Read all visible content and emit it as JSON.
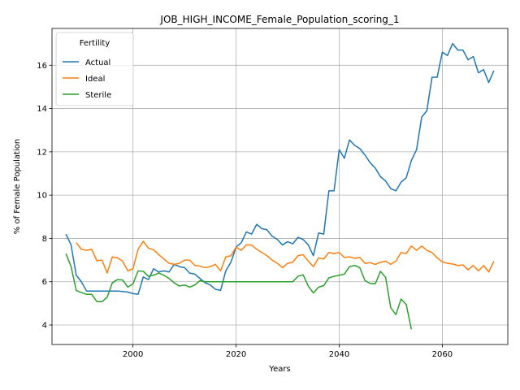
{
  "chart_data": {
    "type": "line",
    "title": "JOB_HIGH_INCOME_Female_Population_scoring_1",
    "xlabel": "Years",
    "ylabel": "% of Female Population",
    "xlim": [
      1984.3,
      2072.7
    ],
    "ylim": [
      3.1,
      17.7
    ],
    "x_ticks": [
      2000,
      2020,
      2040,
      2060
    ],
    "y_ticks": [
      4,
      6,
      8,
      10,
      12,
      14,
      16
    ],
    "grid": true,
    "legend": {
      "title": "Fertility",
      "placement": "top-left"
    },
    "series": [
      {
        "name": "Actual",
        "color": "#1f77b4",
        "points": [
          [
            1987,
            8.2
          ],
          [
            1988,
            7.7
          ],
          [
            1989,
            6.3
          ],
          [
            1990,
            6.0
          ],
          [
            1991,
            5.57
          ],
          [
            1992,
            5.57
          ],
          [
            1993,
            5.57
          ],
          [
            1994,
            5.57
          ],
          [
            1995,
            5.57
          ],
          [
            1996,
            5.57
          ],
          [
            1997,
            5.57
          ],
          [
            1998,
            5.55
          ],
          [
            1999,
            5.52
          ],
          [
            2000,
            5.45
          ],
          [
            2001,
            5.42
          ],
          [
            2002,
            6.22
          ],
          [
            2003,
            6.1
          ],
          [
            2004,
            6.6
          ],
          [
            2005,
            6.45
          ],
          [
            2006,
            6.5
          ],
          [
            2007,
            6.45
          ],
          [
            2008,
            6.8
          ],
          [
            2009,
            6.7
          ],
          [
            2010,
            6.65
          ],
          [
            2011,
            6.4
          ],
          [
            2012,
            6.35
          ],
          [
            2013,
            6.15
          ],
          [
            2014,
            5.95
          ],
          [
            2015,
            5.85
          ],
          [
            2016,
            5.65
          ],
          [
            2017,
            5.6
          ],
          [
            2018,
            6.5
          ],
          [
            2019,
            6.9
          ],
          [
            2020,
            7.6
          ],
          [
            2021,
            7.8
          ],
          [
            2022,
            8.3
          ],
          [
            2023,
            8.2
          ],
          [
            2024,
            8.65
          ],
          [
            2025,
            8.45
          ],
          [
            2026,
            8.4
          ],
          [
            2027,
            8.1
          ],
          [
            2028,
            7.95
          ],
          [
            2029,
            7.7
          ],
          [
            2030,
            7.85
          ],
          [
            2031,
            7.75
          ],
          [
            2032,
            8.05
          ],
          [
            2033,
            7.95
          ],
          [
            2034,
            7.7
          ],
          [
            2035,
            7.2
          ],
          [
            2036,
            8.25
          ],
          [
            2037,
            8.2
          ],
          [
            2038,
            10.2
          ],
          [
            2039,
            10.2
          ],
          [
            2040,
            12.1
          ],
          [
            2041,
            11.7
          ],
          [
            2042,
            12.55
          ],
          [
            2043,
            12.3
          ],
          [
            2044,
            12.15
          ],
          [
            2045,
            11.85
          ],
          [
            2046,
            11.5
          ],
          [
            2047,
            11.25
          ],
          [
            2048,
            10.85
          ],
          [
            2049,
            10.65
          ],
          [
            2050,
            10.3
          ],
          [
            2051,
            10.2
          ],
          [
            2052,
            10.6
          ],
          [
            2053,
            10.8
          ],
          [
            2054,
            11.6
          ],
          [
            2055,
            12.1
          ],
          [
            2056,
            13.6
          ],
          [
            2057,
            13.9
          ],
          [
            2058,
            15.45
          ],
          [
            2059,
            15.45
          ],
          [
            2060,
            16.6
          ],
          [
            2061,
            16.45
          ],
          [
            2062,
            17.0
          ],
          [
            2063,
            16.7
          ],
          [
            2064,
            16.7
          ],
          [
            2065,
            16.25
          ],
          [
            2066,
            16.4
          ],
          [
            2067,
            15.65
          ],
          [
            2068,
            15.8
          ],
          [
            2069,
            15.2
          ],
          [
            2070,
            15.75
          ]
        ]
      },
      {
        "name": "Ideal",
        "color": "#ff7f0e",
        "points": [
          [
            1989,
            7.8
          ],
          [
            1990,
            7.5
          ],
          [
            1991,
            7.45
          ],
          [
            1992,
            7.5
          ],
          [
            1993,
            6.97
          ],
          [
            1994,
            7.0
          ],
          [
            1995,
            6.4
          ],
          [
            1996,
            7.15
          ],
          [
            1997,
            7.1
          ],
          [
            1998,
            6.95
          ],
          [
            1999,
            6.5
          ],
          [
            2000,
            6.6
          ],
          [
            2001,
            7.5
          ],
          [
            2002,
            7.87
          ],
          [
            2003,
            7.55
          ],
          [
            2004,
            7.48
          ],
          [
            2005,
            7.25
          ],
          [
            2006,
            7.05
          ],
          [
            2007,
            6.85
          ],
          [
            2008,
            6.8
          ],
          [
            2009,
            6.85
          ],
          [
            2010,
            7.0
          ],
          [
            2011,
            7.0
          ],
          [
            2012,
            6.75
          ],
          [
            2013,
            6.72
          ],
          [
            2014,
            6.65
          ],
          [
            2015,
            6.7
          ],
          [
            2016,
            6.8
          ],
          [
            2017,
            6.5
          ],
          [
            2018,
            7.15
          ],
          [
            2019,
            7.2
          ],
          [
            2020,
            7.6
          ],
          [
            2021,
            7.45
          ],
          [
            2022,
            7.7
          ],
          [
            2023,
            7.7
          ],
          [
            2024,
            7.5
          ],
          [
            2025,
            7.35
          ],
          [
            2026,
            7.2
          ],
          [
            2027,
            7.0
          ],
          [
            2028,
            6.85
          ],
          [
            2029,
            6.65
          ],
          [
            2030,
            6.85
          ],
          [
            2031,
            6.9
          ],
          [
            2032,
            7.2
          ],
          [
            2033,
            7.25
          ],
          [
            2034,
            6.95
          ],
          [
            2035,
            6.7
          ],
          [
            2036,
            7.1
          ],
          [
            2037,
            7.05
          ],
          [
            2038,
            7.35
          ],
          [
            2039,
            7.3
          ],
          [
            2040,
            7.35
          ],
          [
            2041,
            7.12
          ],
          [
            2042,
            7.15
          ],
          [
            2043,
            7.08
          ],
          [
            2044,
            7.12
          ],
          [
            2045,
            6.85
          ],
          [
            2046,
            6.88
          ],
          [
            2047,
            6.8
          ],
          [
            2048,
            6.9
          ],
          [
            2049,
            6.95
          ],
          [
            2050,
            6.8
          ],
          [
            2051,
            6.95
          ],
          [
            2052,
            7.35
          ],
          [
            2053,
            7.3
          ],
          [
            2054,
            7.65
          ],
          [
            2055,
            7.45
          ],
          [
            2056,
            7.65
          ],
          [
            2057,
            7.45
          ],
          [
            2058,
            7.35
          ],
          [
            2059,
            7.1
          ],
          [
            2060,
            6.92
          ],
          [
            2061,
            6.85
          ],
          [
            2062,
            6.82
          ],
          [
            2063,
            6.75
          ],
          [
            2064,
            6.78
          ],
          [
            2065,
            6.55
          ],
          [
            2066,
            6.75
          ],
          [
            2067,
            6.5
          ],
          [
            2068,
            6.75
          ],
          [
            2069,
            6.45
          ],
          [
            2070,
            6.95
          ]
        ]
      },
      {
        "name": "Sterile",
        "color": "#2ca02c",
        "points": [
          [
            1987,
            7.3
          ],
          [
            1988,
            6.7
          ],
          [
            1989,
            5.6
          ],
          [
            1990,
            5.5
          ],
          [
            1991,
            5.42
          ],
          [
            1992,
            5.42
          ],
          [
            1993,
            5.08
          ],
          [
            1994,
            5.08
          ],
          [
            1995,
            5.28
          ],
          [
            1996,
            5.95
          ],
          [
            1997,
            6.1
          ],
          [
            1998,
            6.08
          ],
          [
            1999,
            5.75
          ],
          [
            2000,
            5.9
          ],
          [
            2001,
            6.5
          ],
          [
            2002,
            6.48
          ],
          [
            2003,
            6.25
          ],
          [
            2004,
            6.3
          ],
          [
            2005,
            6.4
          ],
          [
            2006,
            6.3
          ],
          [
            2007,
            6.15
          ],
          [
            2008,
            5.95
          ],
          [
            2009,
            5.8
          ],
          [
            2010,
            5.85
          ],
          [
            2011,
            5.75
          ],
          [
            2012,
            5.85
          ],
          [
            2013,
            6.05
          ],
          [
            2014,
            6.0
          ],
          [
            2015,
            6.0
          ],
          [
            2016,
            6.0
          ],
          [
            2017,
            6.0
          ],
          [
            2018,
            6.0
          ],
          [
            2019,
            6.0
          ],
          [
            2020,
            6.0
          ],
          [
            2021,
            6.0
          ],
          [
            2022,
            6.0
          ],
          [
            2023,
            6.0
          ],
          [
            2024,
            6.0
          ],
          [
            2025,
            6.0
          ],
          [
            2026,
            6.0
          ],
          [
            2027,
            6.0
          ],
          [
            2028,
            6.0
          ],
          [
            2029,
            6.0
          ],
          [
            2030,
            6.0
          ],
          [
            2031,
            6.0
          ],
          [
            2032,
            6.25
          ],
          [
            2033,
            6.32
          ],
          [
            2034,
            5.8
          ],
          [
            2035,
            5.48
          ],
          [
            2036,
            5.75
          ],
          [
            2037,
            5.82
          ],
          [
            2038,
            6.18
          ],
          [
            2039,
            6.25
          ],
          [
            2040,
            6.3
          ],
          [
            2041,
            6.35
          ],
          [
            2042,
            6.7
          ],
          [
            2043,
            6.75
          ],
          [
            2044,
            6.65
          ],
          [
            2045,
            6.05
          ],
          [
            2046,
            5.92
          ],
          [
            2047,
            5.9
          ],
          [
            2048,
            6.48
          ],
          [
            2049,
            6.2
          ],
          [
            2050,
            4.8
          ],
          [
            2051,
            4.48
          ],
          [
            2052,
            5.2
          ],
          [
            2053,
            4.95
          ],
          [
            2054,
            3.8
          ]
        ]
      }
    ]
  }
}
